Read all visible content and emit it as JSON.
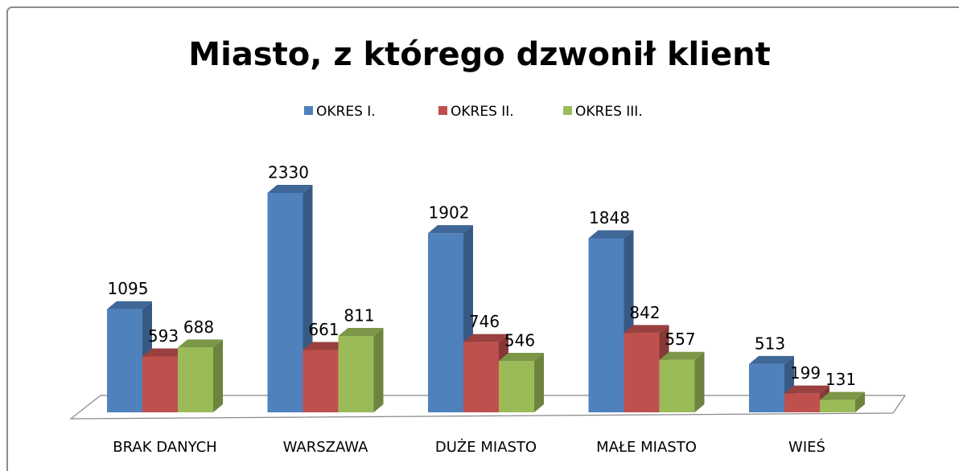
{
  "chart_data": {
    "type": "bar3d",
    "title": "Miasto, z którego dzwonił klient",
    "categories": [
      "BRAK DANYCH",
      "WARSZAWA",
      "DUŻE MIASTO",
      "MAŁE MIASTO",
      "WIEŚ"
    ],
    "series": [
      {
        "name": "OKRES I.",
        "color": "#4f81bd",
        "values": [
          1095,
          2330,
          1902,
          1848,
          513
        ]
      },
      {
        "name": "OKRES II.",
        "color": "#c0504d",
        "values": [
          593,
          661,
          746,
          842,
          199
        ]
      },
      {
        "name": "OKRES III.",
        "color": "#9bbb59",
        "values": [
          688,
          811,
          546,
          557,
          131
        ]
      }
    ],
    "legend": "top"
  }
}
